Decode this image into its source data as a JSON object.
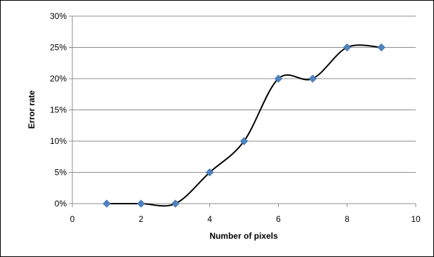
{
  "chart_data": {
    "type": "scatter",
    "title": "",
    "xlabel": "Number of pixels",
    "ylabel": "Error rate",
    "xlim": [
      0,
      10
    ],
    "ylim": [
      0,
      0.3
    ],
    "x_ticks": [
      0,
      2,
      4,
      6,
      8,
      10
    ],
    "x_tick_labels": [
      "0",
      "2",
      "4",
      "6",
      "8",
      "10"
    ],
    "y_ticks": [
      0,
      0.05,
      0.1,
      0.15,
      0.2,
      0.25,
      0.3
    ],
    "y_tick_labels": [
      "0%",
      "5%",
      "10%",
      "15%",
      "20%",
      "25%",
      "30%"
    ],
    "grid": "horizontal",
    "legend": "none",
    "series": [
      {
        "marker": "diamond",
        "line": "smooth",
        "marker_color": "#4f81bd",
        "line_color": "#000000",
        "x": [
          1,
          2,
          3,
          4,
          5,
          6,
          7,
          8,
          9
        ],
        "y": [
          0,
          0,
          0,
          0.05,
          0.1,
          0.2,
          0.2,
          0.25,
          0.25
        ]
      }
    ]
  }
}
